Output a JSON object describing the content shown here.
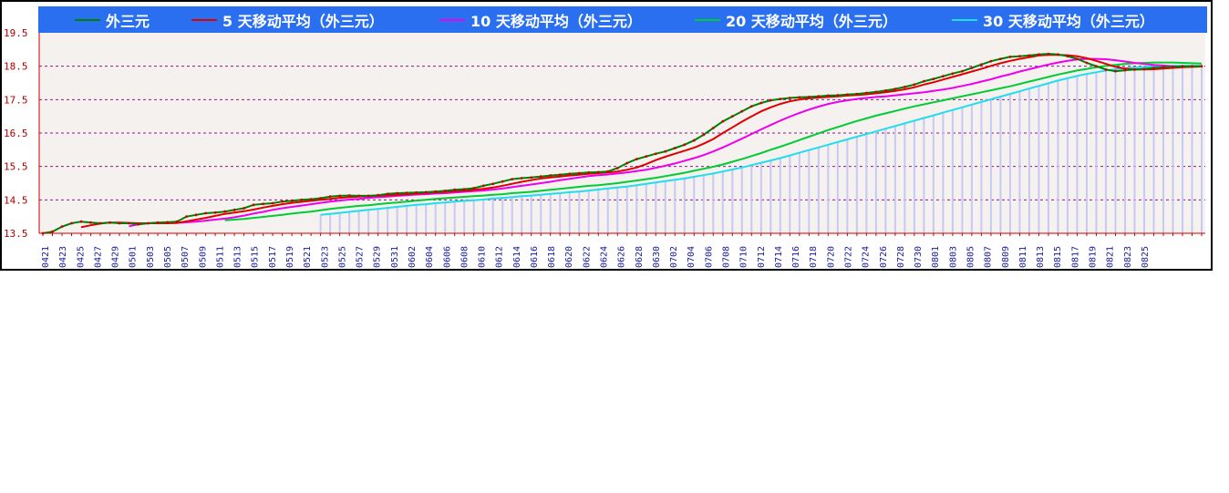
{
  "chart_data": {
    "type": "line",
    "title": "",
    "xlabel": "",
    "ylabel": "",
    "ylim": [
      13.5,
      19.5
    ],
    "yticks": [
      "13.5",
      "14.5",
      "15.5",
      "16.5",
      "17.5",
      "18.5",
      "19.5"
    ],
    "grid": true,
    "legend_position": "top",
    "x_labels": [
      "0421",
      "0423",
      "0425",
      "0427",
      "0429",
      "0501",
      "0503",
      "0505",
      "0507",
      "0509",
      "0511",
      "0513",
      "0515",
      "0517",
      "0519",
      "0521",
      "0523",
      "0525",
      "0527",
      "0529",
      "0531",
      "0602",
      "0604",
      "0606",
      "0608",
      "0610",
      "0612",
      "0614",
      "0616",
      "0618",
      "0620",
      "0622",
      "0624",
      "0626",
      "0628",
      "0630",
      "0702",
      "0704",
      "0706",
      "0708",
      "0710",
      "0712",
      "0714",
      "0716",
      "0718",
      "0720",
      "0722",
      "0724",
      "0726",
      "0728",
      "0730",
      "0801",
      "0803",
      "0805",
      "0807",
      "0809",
      "0811",
      "0813",
      "0815",
      "0817",
      "0819",
      "0821",
      "0823",
      "0825"
    ],
    "series": [
      {
        "name": "外三元",
        "color": "#008000",
        "marker_color": "#cc0000",
        "values": [
          13.5,
          13.55,
          13.7,
          13.8,
          13.85,
          13.82,
          13.8,
          13.82,
          13.8,
          13.8,
          13.77,
          13.8,
          13.82,
          13.83,
          13.85,
          14.0,
          14.05,
          14.1,
          14.12,
          14.15,
          14.2,
          14.25,
          14.35,
          14.38,
          14.4,
          14.45,
          14.47,
          14.5,
          14.52,
          14.55,
          14.6,
          14.62,
          14.63,
          14.62,
          14.62,
          14.64,
          14.68,
          14.7,
          14.71,
          14.72,
          14.73,
          14.75,
          14.77,
          14.8,
          14.82,
          14.85,
          14.92,
          14.98,
          15.05,
          15.12,
          15.15,
          15.17,
          15.2,
          15.23,
          15.25,
          15.28,
          15.3,
          15.32,
          15.33,
          15.35,
          15.45,
          15.6,
          15.72,
          15.8,
          15.88,
          15.95,
          16.05,
          16.15,
          16.28,
          16.45,
          16.65,
          16.85,
          17.0,
          17.15,
          17.3,
          17.4,
          17.48,
          17.52,
          17.55,
          17.57,
          17.58,
          17.6,
          17.62,
          17.63,
          17.65,
          17.67,
          17.7,
          17.73,
          17.77,
          17.82,
          17.88,
          17.95,
          18.05,
          18.12,
          18.2,
          18.28,
          18.35,
          18.45,
          18.55,
          18.65,
          18.72,
          18.78,
          18.8,
          18.82,
          18.85,
          18.87,
          18.85,
          18.8,
          18.72,
          18.6,
          18.5,
          18.4,
          18.35,
          18.38,
          18.4,
          18.42,
          18.45,
          18.47,
          18.48,
          18.5,
          18.5,
          18.5
        ]
      },
      {
        "name": "5 天移动平均（外三元）",
        "color": "#e00000",
        "values": [
          null,
          null,
          null,
          null,
          13.68,
          13.74,
          13.79,
          13.82,
          13.82,
          13.81,
          13.8,
          13.8,
          13.8,
          13.8,
          13.81,
          13.86,
          13.91,
          13.96,
          14.02,
          14.08,
          14.12,
          14.16,
          14.21,
          14.27,
          14.32,
          14.37,
          14.41,
          14.44,
          14.47,
          14.5,
          14.53,
          14.56,
          14.58,
          14.6,
          14.61,
          14.63,
          14.64,
          14.65,
          14.67,
          14.69,
          14.71,
          14.72,
          14.74,
          14.76,
          14.77,
          14.8,
          14.83,
          14.87,
          14.92,
          14.98,
          15.04,
          15.09,
          15.14,
          15.17,
          15.2,
          15.23,
          15.25,
          15.28,
          15.3,
          15.32,
          15.35,
          15.4,
          15.47,
          15.57,
          15.69,
          15.79,
          15.88,
          15.97,
          16.06,
          16.18,
          16.32,
          16.5,
          16.67,
          16.84,
          17.0,
          17.15,
          17.27,
          17.37,
          17.45,
          17.5,
          17.54,
          17.56,
          17.58,
          17.6,
          17.62,
          17.64,
          17.66,
          17.69,
          17.72,
          17.76,
          17.81,
          17.87,
          17.95,
          18.02,
          18.1,
          18.18,
          18.26,
          18.34,
          18.42,
          18.51,
          18.59,
          18.66,
          18.72,
          18.77,
          18.82,
          18.84,
          18.84,
          18.83,
          18.8,
          18.74,
          18.66,
          18.57,
          18.48,
          18.43,
          18.4,
          18.4,
          18.41,
          18.43,
          18.45,
          18.47,
          18.48,
          18.49
        ]
      },
      {
        "name": "10 天移动平均（外三元）",
        "color": "#ee00ee",
        "values": [
          null,
          null,
          null,
          null,
          null,
          null,
          null,
          null,
          null,
          13.71,
          13.77,
          13.8,
          13.81,
          13.81,
          13.81,
          13.83,
          13.85,
          13.88,
          13.91,
          13.94,
          13.98,
          14.03,
          14.09,
          14.14,
          14.2,
          14.25,
          14.29,
          14.33,
          14.37,
          14.41,
          14.45,
          14.48,
          14.51,
          14.53,
          14.56,
          14.58,
          14.6,
          14.62,
          14.64,
          14.66,
          14.67,
          14.69,
          14.7,
          14.72,
          14.74,
          14.76,
          14.78,
          14.81,
          14.84,
          14.88,
          14.92,
          14.96,
          15.0,
          15.04,
          15.09,
          15.13,
          15.17,
          15.21,
          15.24,
          15.26,
          15.29,
          15.32,
          15.36,
          15.4,
          15.46,
          15.52,
          15.59,
          15.67,
          15.75,
          15.84,
          15.95,
          16.07,
          16.2,
          16.33,
          16.47,
          16.61,
          16.74,
          16.87,
          16.99,
          17.1,
          17.2,
          17.29,
          17.37,
          17.43,
          17.48,
          17.52,
          17.55,
          17.58,
          17.6,
          17.63,
          17.66,
          17.69,
          17.72,
          17.76,
          17.8,
          17.85,
          17.91,
          17.97,
          18.04,
          18.11,
          18.19,
          18.26,
          18.34,
          18.41,
          18.48,
          18.55,
          18.61,
          18.66,
          18.7,
          18.72,
          18.72,
          18.71,
          18.68,
          18.64,
          18.6,
          18.57,
          18.54,
          18.52,
          18.5,
          18.49,
          18.49,
          18.49
        ]
      },
      {
        "name": "20 天移动平均（外三元）",
        "color": "#00cc33",
        "values": [
          null,
          null,
          null,
          null,
          null,
          null,
          null,
          null,
          null,
          null,
          null,
          null,
          null,
          null,
          null,
          null,
          null,
          null,
          null,
          13.89,
          13.91,
          13.93,
          13.96,
          13.99,
          14.02,
          14.05,
          14.09,
          14.12,
          14.15,
          14.19,
          14.23,
          14.26,
          14.29,
          14.32,
          14.34,
          14.37,
          14.4,
          14.42,
          14.45,
          14.48,
          14.5,
          14.53,
          14.55,
          14.57,
          14.59,
          14.61,
          14.63,
          14.65,
          14.67,
          14.7,
          14.72,
          14.74,
          14.77,
          14.8,
          14.83,
          14.86,
          14.89,
          14.92,
          14.94,
          14.97,
          15.0,
          15.04,
          15.08,
          15.12,
          15.16,
          15.21,
          15.26,
          15.31,
          15.37,
          15.43,
          15.49,
          15.56,
          15.64,
          15.72,
          15.81,
          15.9,
          16.0,
          16.09,
          16.19,
          16.29,
          16.39,
          16.49,
          16.59,
          16.68,
          16.77,
          16.86,
          16.94,
          17.02,
          17.09,
          17.16,
          17.23,
          17.3,
          17.36,
          17.42,
          17.48,
          17.54,
          17.6,
          17.66,
          17.72,
          17.78,
          17.84,
          17.9,
          17.97,
          18.04,
          18.11,
          18.18,
          18.25,
          18.31,
          18.37,
          18.42,
          18.47,
          18.51,
          18.54,
          18.57,
          18.59,
          18.6,
          18.61,
          18.61,
          18.61,
          18.6,
          18.59,
          18.58
        ]
      },
      {
        "name": "30 天移动平均（外三元）",
        "color": "#22ddee",
        "values": [
          null,
          null,
          null,
          null,
          null,
          null,
          null,
          null,
          null,
          null,
          null,
          null,
          null,
          null,
          null,
          null,
          null,
          null,
          null,
          null,
          null,
          null,
          null,
          null,
          null,
          null,
          null,
          null,
          null,
          14.05,
          14.08,
          14.11,
          14.14,
          14.17,
          14.2,
          14.23,
          14.26,
          14.29,
          14.32,
          14.35,
          14.37,
          14.4,
          14.42,
          14.45,
          14.47,
          14.49,
          14.51,
          14.54,
          14.56,
          14.58,
          14.61,
          14.63,
          14.65,
          14.68,
          14.7,
          14.73,
          14.75,
          14.78,
          14.81,
          14.84,
          14.87,
          14.9,
          14.94,
          14.98,
          15.02,
          15.06,
          15.1,
          15.14,
          15.19,
          15.24,
          15.29,
          15.35,
          15.41,
          15.47,
          15.54,
          15.61,
          15.68,
          15.75,
          15.83,
          15.91,
          15.99,
          16.07,
          16.15,
          16.23,
          16.31,
          16.39,
          16.47,
          16.55,
          16.63,
          16.71,
          16.79,
          16.87,
          16.95,
          17.03,
          17.11,
          17.19,
          17.27,
          17.35,
          17.43,
          17.51,
          17.59,
          17.67,
          17.75,
          17.83,
          17.91,
          17.99,
          18.07,
          18.14,
          18.21,
          18.27,
          18.32,
          18.37,
          18.41,
          18.44,
          18.46,
          18.48,
          18.49,
          18.5,
          18.51,
          18.51,
          18.51,
          18.51
        ]
      }
    ]
  }
}
